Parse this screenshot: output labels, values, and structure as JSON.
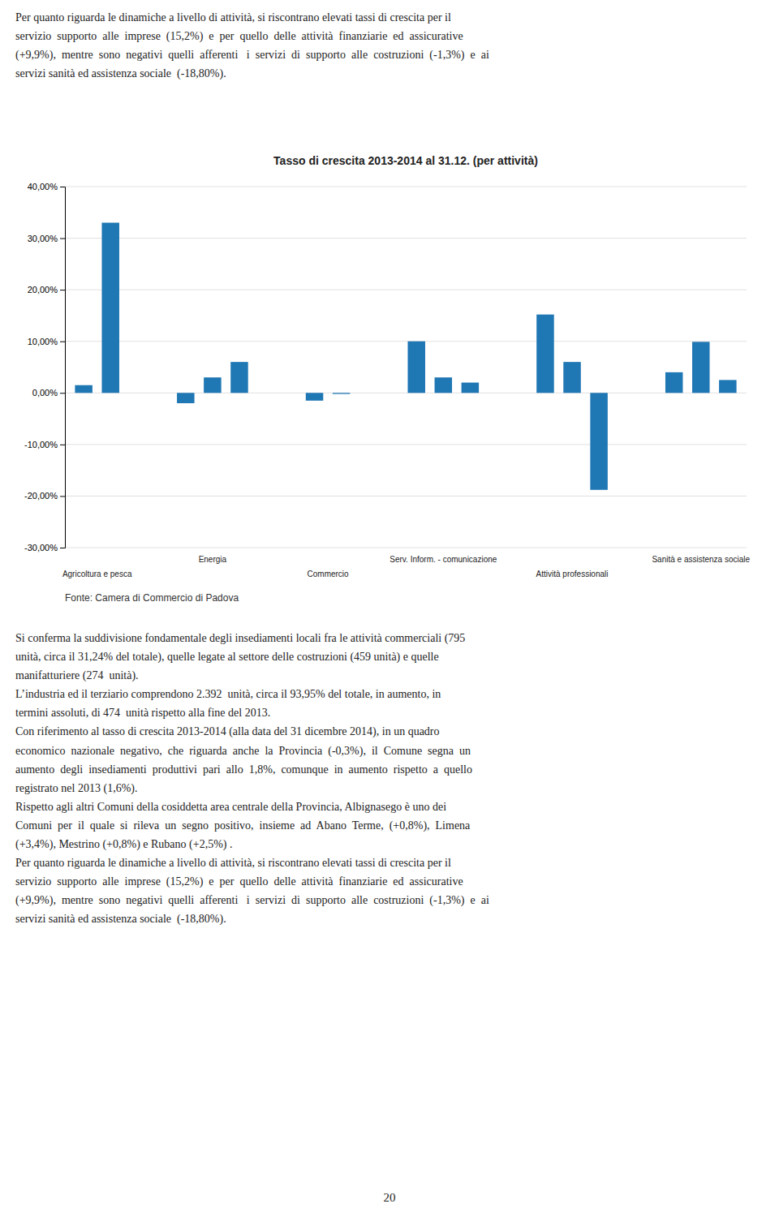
{
  "top_paragraph": "Per quanto riguarda le dinamiche a livello di attività, si riscontrano elevati tassi di crescita per il\nservizio  supporto  alle  imprese  (15,2%)  e  per  quello  delle  attività  finanziarie  ed  assicurative\n(+9,9%),  mentre  sono  negativi  quelli  afferenti   i  servizi  di  supporto  alle  costruzioni  (-1,3%)  e  ai\nservizi sanità ed assistenza sociale  (-18,80%).",
  "chart_data": {
    "type": "bar",
    "title": "Tasso di crescita 2013-2014 al 31.12. (per attività)",
    "categories": [
      "Agricoltura e pesca",
      "Energia",
      "Commercio",
      "Serv. Inform. - comunicazione",
      "Attività professionali",
      "Sanità e assistenza sociale"
    ],
    "values": [
      [
        1.5,
        33.0
      ],
      [
        -2.0,
        3.0,
        6.0
      ],
      [
        -1.5,
        -0.2
      ],
      [
        10.0,
        3.0,
        2.0
      ],
      [
        15.2,
        6.0,
        -18.8
      ],
      [
        4.0,
        9.9,
        2.5
      ]
    ],
    "ylim": [
      -30,
      40
    ],
    "yticks": [
      {
        "value": -30,
        "label": "-30,00%"
      },
      {
        "value": -20,
        "label": "-20,00%"
      },
      {
        "value": -10,
        "label": "-10,00%"
      },
      {
        "value": 0,
        "label": "0,00%"
      },
      {
        "value": 10,
        "label": "10,00%"
      },
      {
        "value": 20,
        "label": "20,00%"
      },
      {
        "value": 30,
        "label": "30,00%"
      },
      {
        "value": 40,
        "label": "40,00%"
      }
    ],
    "grid": true,
    "source": "Fonte: Camera di Commercio di Padova"
  },
  "bottom_paragraph": "Si conferma la suddivisione fondamentale degli insediamenti locali fra le attività commerciali (795\nunità, circa il 31,24% del totale), quelle legate al settore delle costruzioni (459 unità) e quelle\nmanifatturiere (274  unità).\nL’industria ed il terziario comprendono 2.392  unità, circa il 93,95% del totale, in aumento, in\ntermini assoluti, di 474  unità rispetto alla fine del 2013.\nCon riferimento al tasso di crescita 2013-2014 (alla data del 31 dicembre 2014), in un quadro\neconomico  nazionale  negativo,  che  riguarda  anche  la  Provincia  (-0,3%),  il  Comune  segna  un\naumento  degli  insediamenti  produttivi  pari  allo  1,8%,  comunque  in  aumento  rispetto  a  quello\nregistrato nel 2013 (1,6%).\nRispetto agli altri Comuni della cosiddetta area centrale della Provincia, Albignasego è uno dei\nComuni  per  il  quale  si  rileva  un  segno  positivo,  insieme  ad  Abano  Terme,  (+0,8%),  Limena\n(+3,4%), Mestrino (+0,8%) e Rubano (+2,5%) .\nPer quanto riguarda le dinamiche a livello di attività, si riscontrano elevati tassi di crescita per il\nservizio  supporto  alle  imprese  (15,2%)  e  per  quello  delle  attività  finanziarie  ed  assicurative\n(+9,9%),  mentre  sono  negativi  quelli  afferenti   i  servizi  di  supporto  alle  costruzioni  (-1,3%)  e  ai\nservizi sanità ed assistenza sociale  (-18,80%).",
  "page_number": "20"
}
